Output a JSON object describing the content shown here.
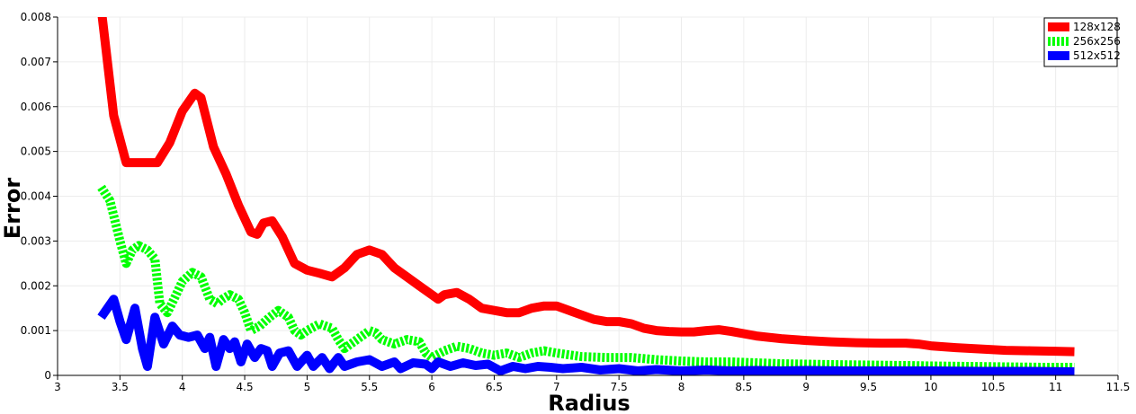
{
  "chart_data": {
    "type": "line",
    "xlabel": "Radius",
    "ylabel": "Error",
    "xlim": [
      3,
      11.5
    ],
    "ylim": [
      0,
      0.008
    ],
    "grid": true,
    "legend_position": "top-right",
    "x_ticks": [
      "3",
      "3.5",
      "4",
      "4.5",
      "5",
      "5.5",
      "6",
      "6.5",
      "7",
      "7.5",
      "8",
      "8.5",
      "9",
      "9.5",
      "10",
      "10.5",
      "11",
      "11.5"
    ],
    "y_ticks": [
      "0",
      "0.001",
      "0.002",
      "0.003",
      "0.004",
      "0.005",
      "0.006",
      "0.007",
      "0.008"
    ],
    "series": [
      {
        "name": "128x128",
        "color": "#ff0000",
        "style": "solid",
        "points": [
          [
            3.35,
            0.0082
          ],
          [
            3.45,
            0.0058
          ],
          [
            3.55,
            0.00475
          ],
          [
            3.65,
            0.00475
          ],
          [
            3.8,
            0.00475
          ],
          [
            3.9,
            0.0052
          ],
          [
            4.0,
            0.0059
          ],
          [
            4.1,
            0.0063
          ],
          [
            4.15,
            0.0062
          ],
          [
            4.25,
            0.0051
          ],
          [
            4.35,
            0.0045
          ],
          [
            4.45,
            0.0038
          ],
          [
            4.55,
            0.0032
          ],
          [
            4.6,
            0.00315
          ],
          [
            4.65,
            0.0034
          ],
          [
            4.72,
            0.00345
          ],
          [
            4.8,
            0.0031
          ],
          [
            4.9,
            0.0025
          ],
          [
            5.0,
            0.00235
          ],
          [
            5.1,
            0.00228
          ],
          [
            5.2,
            0.0022
          ],
          [
            5.3,
            0.0024
          ],
          [
            5.4,
            0.0027
          ],
          [
            5.5,
            0.0028
          ],
          [
            5.6,
            0.0027
          ],
          [
            5.7,
            0.0024
          ],
          [
            5.8,
            0.0022
          ],
          [
            5.9,
            0.002
          ],
          [
            6.0,
            0.0018
          ],
          [
            6.05,
            0.0017
          ],
          [
            6.1,
            0.0018
          ],
          [
            6.2,
            0.00185
          ],
          [
            6.3,
            0.0017
          ],
          [
            6.4,
            0.0015
          ],
          [
            6.5,
            0.00145
          ],
          [
            6.6,
            0.0014
          ],
          [
            6.7,
            0.0014
          ],
          [
            6.8,
            0.0015
          ],
          [
            6.9,
            0.00155
          ],
          [
            7.0,
            0.00155
          ],
          [
            7.1,
            0.00145
          ],
          [
            7.2,
            0.00135
          ],
          [
            7.3,
            0.00125
          ],
          [
            7.4,
            0.0012
          ],
          [
            7.5,
            0.0012
          ],
          [
            7.6,
            0.00115
          ],
          [
            7.7,
            0.00105
          ],
          [
            7.8,
            0.001
          ],
          [
            7.9,
            0.00098
          ],
          [
            8.0,
            0.00097
          ],
          [
            8.1,
            0.00097
          ],
          [
            8.2,
            0.001
          ],
          [
            8.3,
            0.00102
          ],
          [
            8.4,
            0.00098
          ],
          [
            8.5,
            0.00093
          ],
          [
            8.6,
            0.00088
          ],
          [
            8.7,
            0.00085
          ],
          [
            8.8,
            0.00082
          ],
          [
            8.9,
            0.0008
          ],
          [
            9.0,
            0.00078
          ],
          [
            9.2,
            0.00075
          ],
          [
            9.4,
            0.00073
          ],
          [
            9.6,
            0.00072
          ],
          [
            9.8,
            0.00072
          ],
          [
            9.9,
            0.0007
          ],
          [
            10.0,
            0.00066
          ],
          [
            10.2,
            0.00062
          ],
          [
            10.4,
            0.00059
          ],
          [
            10.6,
            0.00056
          ],
          [
            10.8,
            0.00055
          ],
          [
            11.0,
            0.00054
          ],
          [
            11.15,
            0.00053
          ]
        ]
      },
      {
        "name": "256x256",
        "color": "#00ff00",
        "style": "dashed",
        "points": [
          [
            3.35,
            0.0042
          ],
          [
            3.42,
            0.0039
          ],
          [
            3.5,
            0.003
          ],
          [
            3.55,
            0.0025
          ],
          [
            3.6,
            0.0028
          ],
          [
            3.65,
            0.0029
          ],
          [
            3.72,
            0.0028
          ],
          [
            3.78,
            0.0026
          ],
          [
            3.82,
            0.0016
          ],
          [
            3.88,
            0.0014
          ],
          [
            3.95,
            0.0018
          ],
          [
            4.0,
            0.0021
          ],
          [
            4.08,
            0.0023
          ],
          [
            4.15,
            0.0022
          ],
          [
            4.22,
            0.0017
          ],
          [
            4.28,
            0.0016
          ],
          [
            4.32,
            0.0017
          ],
          [
            4.38,
            0.0018
          ],
          [
            4.45,
            0.0017
          ],
          [
            4.5,
            0.0014
          ],
          [
            4.55,
            0.001
          ],
          [
            4.62,
            0.0011
          ],
          [
            4.7,
            0.0013
          ],
          [
            4.77,
            0.00145
          ],
          [
            4.85,
            0.0013
          ],
          [
            4.9,
            0.001
          ],
          [
            4.95,
            0.0009
          ],
          [
            5.0,
            0.001
          ],
          [
            5.1,
            0.00115
          ],
          [
            5.2,
            0.00105
          ],
          [
            5.25,
            0.0008
          ],
          [
            5.3,
            0.0006
          ],
          [
            5.4,
            0.0008
          ],
          [
            5.5,
            0.001
          ],
          [
            5.55,
            0.00095
          ],
          [
            5.6,
            0.0008
          ],
          [
            5.7,
            0.0007
          ],
          [
            5.8,
            0.0008
          ],
          [
            5.9,
            0.00075
          ],
          [
            5.95,
            0.0005
          ],
          [
            6.0,
            0.0004
          ],
          [
            6.1,
            0.00055
          ],
          [
            6.2,
            0.00065
          ],
          [
            6.3,
            0.0006
          ],
          [
            6.4,
            0.0005
          ],
          [
            6.5,
            0.00045
          ],
          [
            6.6,
            0.0005
          ],
          [
            6.7,
            0.0004
          ],
          [
            6.8,
            0.0005
          ],
          [
            6.9,
            0.00055
          ],
          [
            7.0,
            0.0005
          ],
          [
            7.2,
            0.00042
          ],
          [
            7.4,
            0.0004
          ],
          [
            7.6,
            0.0004
          ],
          [
            7.8,
            0.00035
          ],
          [
            8.0,
            0.00032
          ],
          [
            8.2,
            0.0003
          ],
          [
            8.4,
            0.0003
          ],
          [
            8.6,
            0.00028
          ],
          [
            8.8,
            0.00026
          ],
          [
            9.0,
            0.00025
          ],
          [
            9.2,
            0.00024
          ],
          [
            9.5,
            0.00023
          ],
          [
            9.8,
            0.00022
          ],
          [
            10.0,
            0.00021
          ],
          [
            10.3,
            0.0002
          ],
          [
            10.6,
            0.00019
          ],
          [
            10.9,
            0.00018
          ],
          [
            11.15,
            0.00018
          ]
        ]
      },
      {
        "name": "512x512",
        "color": "#0000ff",
        "style": "solid",
        "points": [
          [
            3.35,
            0.0013
          ],
          [
            3.45,
            0.0017
          ],
          [
            3.5,
            0.0012
          ],
          [
            3.55,
            0.0008
          ],
          [
            3.62,
            0.0015
          ],
          [
            3.68,
            0.0006
          ],
          [
            3.72,
            0.0002
          ],
          [
            3.78,
            0.0013
          ],
          [
            3.85,
            0.0007
          ],
          [
            3.92,
            0.0011
          ],
          [
            3.98,
            0.0009
          ],
          [
            4.05,
            0.00085
          ],
          [
            4.12,
            0.0009
          ],
          [
            4.18,
            0.0006
          ],
          [
            4.22,
            0.00085
          ],
          [
            4.27,
            0.0002
          ],
          [
            4.33,
            0.0008
          ],
          [
            4.38,
            0.0006
          ],
          [
            4.42,
            0.00075
          ],
          [
            4.47,
            0.0003
          ],
          [
            4.52,
            0.0007
          ],
          [
            4.58,
            0.0004
          ],
          [
            4.63,
            0.0006
          ],
          [
            4.68,
            0.00055
          ],
          [
            4.72,
            0.0002
          ],
          [
            4.78,
            0.0005
          ],
          [
            4.85,
            0.00055
          ],
          [
            4.92,
            0.0002
          ],
          [
            5.0,
            0.00045
          ],
          [
            5.05,
            0.0002
          ],
          [
            5.12,
            0.0004
          ],
          [
            5.18,
            0.00015
          ],
          [
            5.25,
            0.0004
          ],
          [
            5.3,
            0.0002
          ],
          [
            5.4,
            0.0003
          ],
          [
            5.5,
            0.00035
          ],
          [
            5.6,
            0.0002
          ],
          [
            5.7,
            0.0003
          ],
          [
            5.75,
            0.00015
          ],
          [
            5.85,
            0.00028
          ],
          [
            5.95,
            0.00025
          ],
          [
            6.0,
            0.00015
          ],
          [
            6.05,
            0.0003
          ],
          [
            6.15,
            0.0002
          ],
          [
            6.25,
            0.00028
          ],
          [
            6.35,
            0.00022
          ],
          [
            6.45,
            0.00025
          ],
          [
            6.55,
            0.0001
          ],
          [
            6.65,
            0.0002
          ],
          [
            6.75,
            0.00015
          ],
          [
            6.85,
            0.0002
          ],
          [
            6.95,
            0.00018
          ],
          [
            7.05,
            0.00015
          ],
          [
            7.2,
            0.00018
          ],
          [
            7.35,
            0.00012
          ],
          [
            7.5,
            0.00015
          ],
          [
            7.65,
            0.0001
          ],
          [
            7.8,
            0.00013
          ],
          [
            8.0,
            0.0001
          ],
          [
            8.2,
            0.00012
          ],
          [
            8.4,
            0.0001
          ],
          [
            8.6,
            0.00011
          ],
          [
            8.8,
            0.0001
          ],
          [
            9.0,
            0.00011
          ],
          [
            9.3,
            0.0001
          ],
          [
            9.6,
            0.0001
          ],
          [
            10.0,
            0.0001
          ],
          [
            10.4,
            9e-05
          ],
          [
            10.8,
            9e-05
          ],
          [
            11.15,
            8e-05
          ]
        ]
      }
    ]
  }
}
